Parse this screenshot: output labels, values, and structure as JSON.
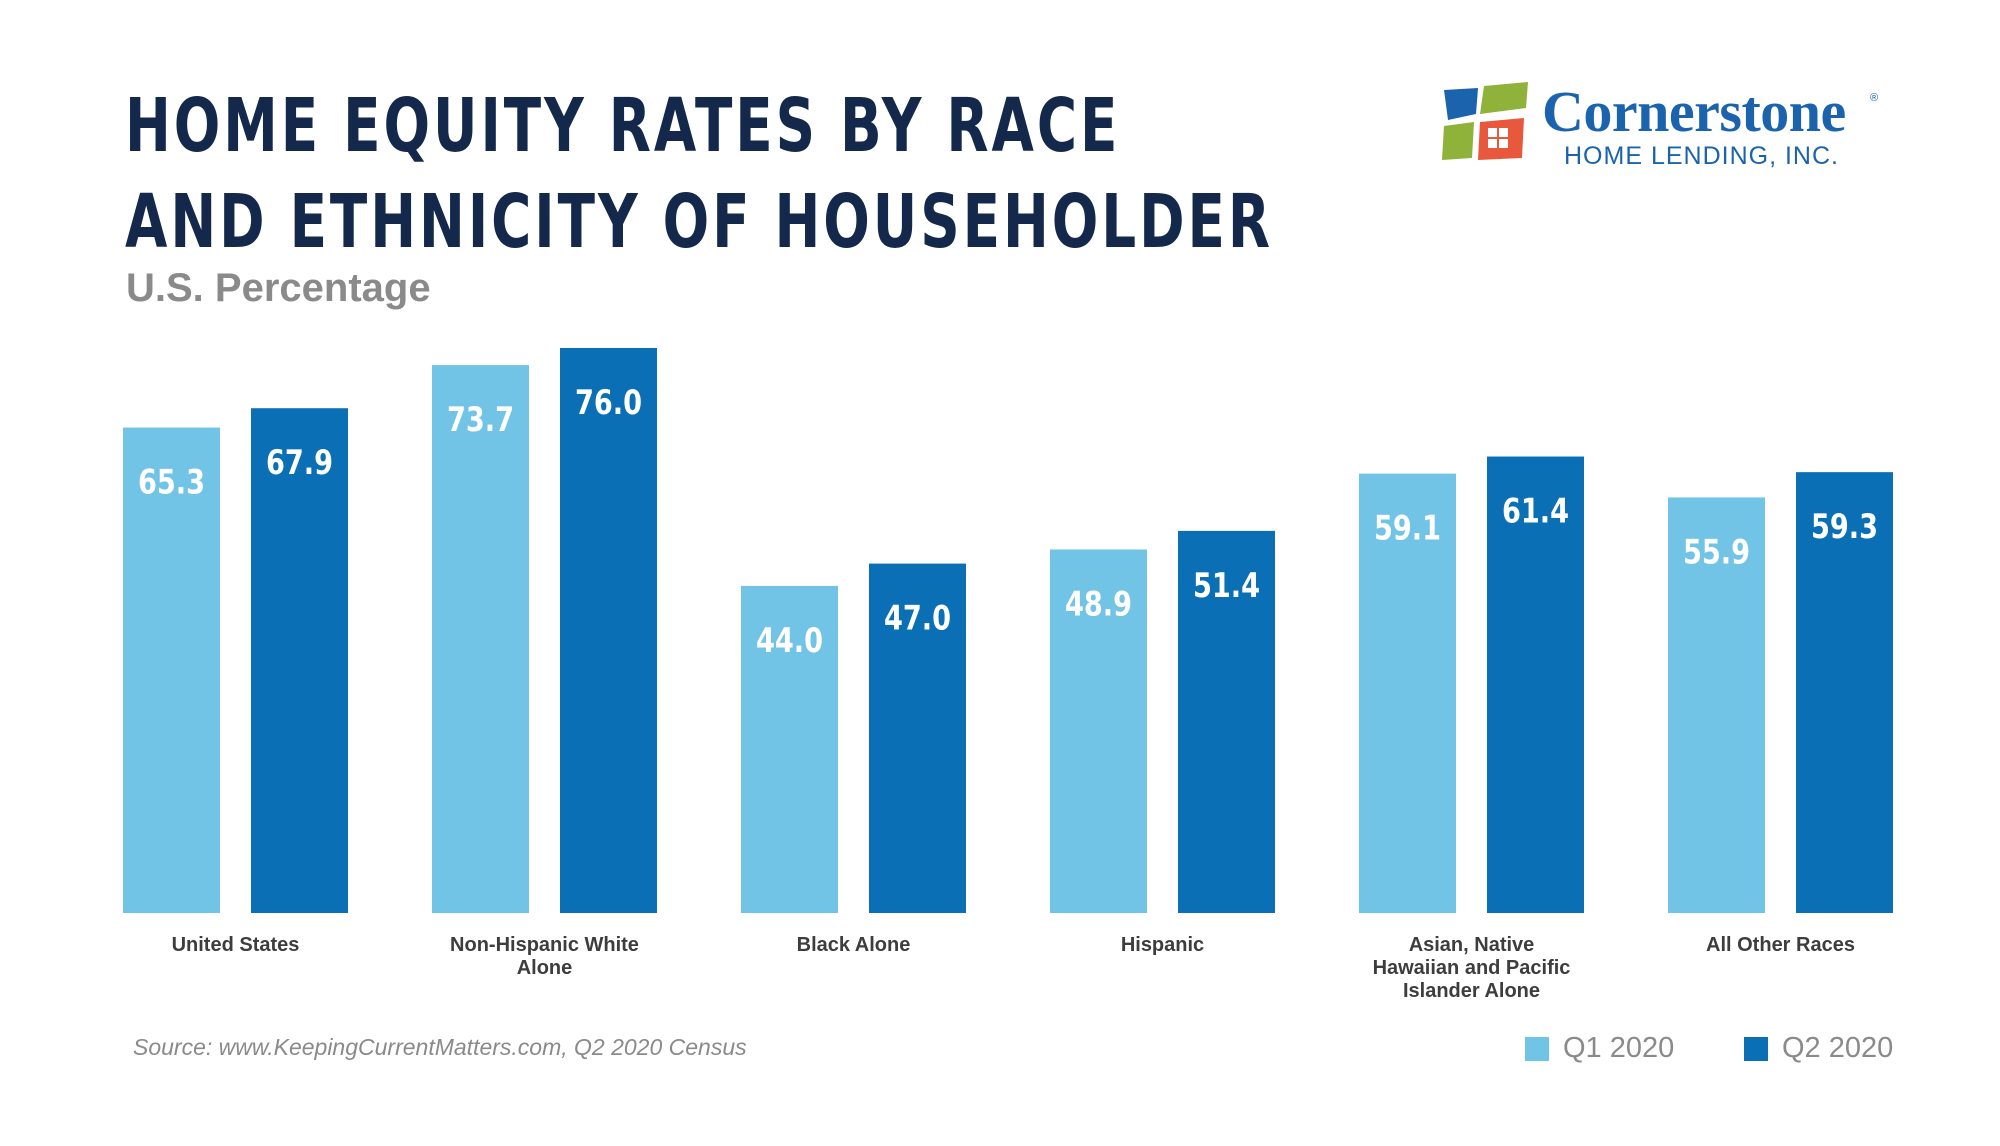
{
  "title_line1": "HOME EQUITY RATES BY RACE",
  "title_line2": "AND ETHNICITY OF HOUSEHOLDER",
  "subtitle": "U.S. Percentage",
  "logo": {
    "brand": "Cornerstone",
    "registered": "®",
    "tagline": "HOME LENDING, INC.",
    "icon": "house-window-icon"
  },
  "source": "Source: www.KeepingCurrentMatters.com, Q2 2020 Census",
  "colors": {
    "q1": "#72c4e7",
    "q2": "#0a6fb5",
    "title": "#13284a",
    "brand": "#1b64ad"
  },
  "chart_data": {
    "type": "bar",
    "title": "HOME EQUITY RATES BY RACE AND ETHNICITY OF HOUSEHOLDER",
    "subtitle": "U.S. Percentage",
    "categories": [
      [
        "United States"
      ],
      [
        "Non-Hispanic White",
        "Alone"
      ],
      [
        "Black Alone"
      ],
      [
        "Hispanic"
      ],
      [
        "Asian, Native",
        "Hawaiian and Pacific",
        "Islander Alone"
      ],
      [
        "All Other Races"
      ]
    ],
    "series": [
      {
        "name": "Q1 2020",
        "values": [
          65.3,
          73.7,
          44.0,
          48.9,
          59.1,
          55.9
        ]
      },
      {
        "name": "Q2 2020",
        "values": [
          67.9,
          76.0,
          47.0,
          51.4,
          61.4,
          59.3
        ]
      }
    ],
    "value_labels": [
      [
        "65.3",
        "73.7",
        "44.0",
        "48.9",
        "59.1",
        "55.9"
      ],
      [
        "67.9",
        "76.0",
        "47.0",
        "51.4",
        "61.4",
        "59.3"
      ]
    ],
    "ylim": [
      0,
      76.0
    ],
    "grid": false,
    "legend": "bottom-right"
  }
}
